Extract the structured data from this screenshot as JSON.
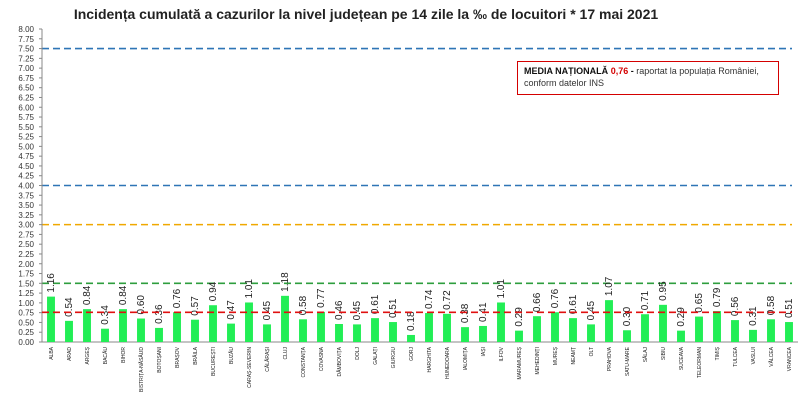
{
  "chart_data": {
    "type": "bar",
    "title": "Incidența cumulată a cazurilor la nivel județean pe 14 zile la ‰ de locuitori *  17 mai 2021",
    "xlabel": "",
    "ylabel": "",
    "ylim": [
      0,
      8
    ],
    "yticks": [
      "0.00",
      "0.25",
      "0.50",
      "0.75",
      "1.00",
      "1.25",
      "1.50",
      "1.75",
      "2.00",
      "2.25",
      "2.50",
      "2.75",
      "3.00",
      "3.25",
      "3.50",
      "3.75",
      "4.00",
      "4.25",
      "4.50",
      "4.75",
      "5.00",
      "5.25",
      "5.50",
      "5.75",
      "6.00",
      "6.25",
      "6.50",
      "6.75",
      "7.00",
      "7.25",
      "7.50",
      "7.75",
      "8.00"
    ],
    "categories": [
      "ALBA",
      "ARAD",
      "ARGEȘ",
      "BACĂU",
      "BIHOR",
      "BISTRIȚA-NĂSĂUD",
      "BOTOȘANI",
      "BRAȘOV",
      "BRĂILA",
      "BUCUREȘTI",
      "BUZĂU",
      "CARAȘ-SEVERIN",
      "CĂLĂRAȘI",
      "CLUJ",
      "CONSTANȚA",
      "COVASNA",
      "DÂMBOVIȚA",
      "DOLJ",
      "GALAȚI",
      "GIURGIU",
      "GORJ",
      "HARGHITA",
      "HUNEDOARA",
      "IALOMIȚA",
      "IAȘI",
      "ILFOV",
      "MARAMUREȘ",
      "MEHEDINȚI",
      "MUREȘ",
      "NEAMȚ",
      "OLT",
      "PRAHOVA",
      "SATU-MARE",
      "SĂLAJ",
      "SIBIU",
      "SUCEAVA",
      "TELEORMAN",
      "TIMIȘ",
      "TULCEA",
      "VASLUI",
      "VÂLCEA",
      "VRANCEA"
    ],
    "values": [
      1.16,
      0.54,
      0.84,
      0.34,
      0.84,
      0.6,
      0.36,
      0.76,
      0.57,
      0.94,
      0.47,
      1.01,
      0.45,
      1.18,
      0.58,
      0.77,
      0.46,
      0.45,
      0.61,
      0.51,
      0.18,
      0.74,
      0.72,
      0.38,
      0.41,
      1.01,
      0.29,
      0.66,
      0.76,
      0.61,
      0.45,
      1.07,
      0.3,
      0.71,
      0.95,
      0.29,
      0.65,
      0.79,
      0.56,
      0.31,
      0.58,
      0.51
    ],
    "value_labels": [
      "1.16",
      "0.54",
      "0.84",
      "0.34",
      "0.84",
      "0.60",
      "0.36",
      "0.76",
      "0.57",
      "0.94",
      "0.47",
      "1.01",
      "0.45",
      "1.18",
      "0.58",
      "0.77",
      "0.46",
      "0.45",
      "0.61",
      "0.51",
      "0.18",
      "0.74",
      "0.72",
      "0.38",
      "0.41",
      "1.01",
      "0.29",
      "0.66",
      "0.76",
      "0.61",
      "0.45",
      "1.07",
      "0.30",
      "0.71",
      "0.95",
      "0.29",
      "0.65",
      "0.79",
      "0.56",
      "0.31",
      "0.58",
      "0.51"
    ],
    "reference_lines": [
      {
        "value": 7.5,
        "color": "#2e75b6"
      },
      {
        "value": 4.0,
        "color": "#2e75b6"
      },
      {
        "value": 3.0,
        "color": "#f0a800"
      },
      {
        "value": 1.5,
        "color": "#2e9e3e"
      },
      {
        "value": 0.76,
        "color": "#e01010"
      }
    ],
    "grid": false,
    "bar_color": "#22ee55"
  },
  "note": {
    "title": "MEDIA NAȚIONALĂ",
    "value": "0,76",
    "dash": "-",
    "text_line1": "raportat la populația României,",
    "text_line2": "conform datelor INS"
  }
}
